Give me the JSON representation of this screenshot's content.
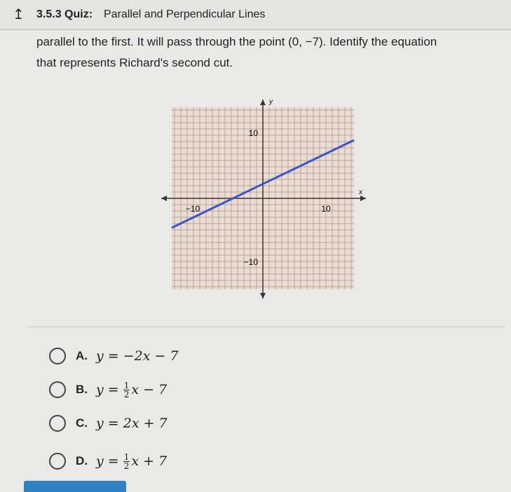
{
  "header": {
    "quiz_number": "3.5.3 Quiz:",
    "title": "Parallel and Perpendicular Lines"
  },
  "question": {
    "lines": [
      "parallel to the first. It will pass through the point (0, −7). Identify the equation",
      "that represents Richard's second cut."
    ]
  },
  "graph": {
    "x_axis_label": "x",
    "y_axis_label": "y",
    "x_tick_labels": [
      "−10",
      "10"
    ],
    "y_tick_labels": [
      "10",
      "−10"
    ]
  },
  "options": [
    {
      "letter": "A.",
      "equation": "y = −2x − 7"
    },
    {
      "letter": "B.",
      "lhs": "y =",
      "numerator": "1",
      "denominator": "2",
      "rest": "x − 7"
    },
    {
      "letter": "C.",
      "equation": "y = 2x + 7"
    },
    {
      "letter": "D.",
      "lhs": "y =",
      "numerator": "1",
      "denominator": "2",
      "rest": "x + 7"
    }
  ]
}
